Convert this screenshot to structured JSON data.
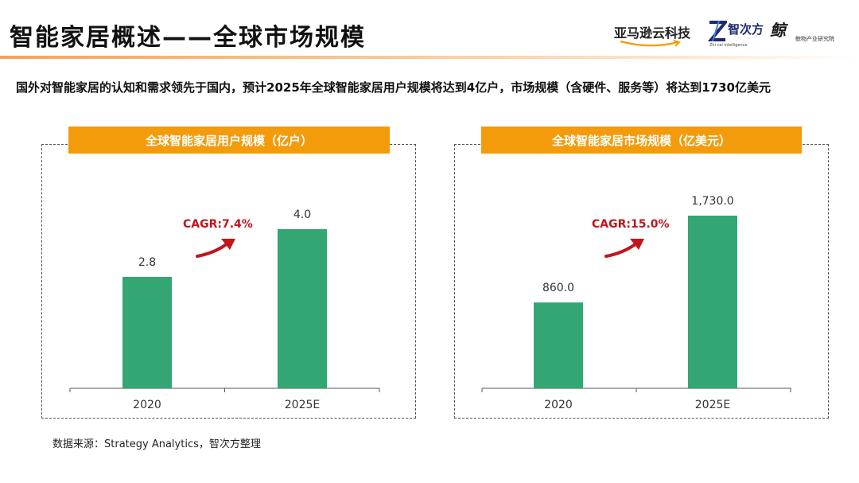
{
  "header": {
    "title": "智能家居概述——全球市场规模",
    "logos": {
      "amazon": "亚马逊云科技",
      "zci": "智次方",
      "zci_sub": "Zhi cei Intelligence",
      "jw_mark": "鲸",
      "jw_text": "鲸物产业研究院"
    }
  },
  "intro": "国外对智能家居的认知和需求领先于国内，预计2025年全球智能家居用户规模将达到4亿户，市场规模（含硬件、服务等）将达到1730亿美元",
  "source": "数据来源：Strategy Analytics，智次方整理",
  "colors": {
    "bar": "#33a674",
    "accent": "#f39b0b",
    "cagr": "#c0161c"
  },
  "chart_data": [
    {
      "type": "bar",
      "title": "全球智能家居用户规模（亿户）",
      "categories": [
        "2020",
        "2025E"
      ],
      "values": [
        2.8,
        4.0
      ],
      "value_labels": [
        "2.8",
        "4.0"
      ],
      "annotation": "CAGR:7.4%",
      "xlabel": "",
      "ylabel": "",
      "grid": false
    },
    {
      "type": "bar",
      "title": "全球智能家居市场规模（亿美元）",
      "categories": [
        "2020",
        "2025E"
      ],
      "values": [
        860.0,
        1730.0
      ],
      "value_labels": [
        "860.0",
        "1,730.0"
      ],
      "annotation": "CAGR:15.0%",
      "xlabel": "",
      "ylabel": "",
      "grid": false
    }
  ]
}
